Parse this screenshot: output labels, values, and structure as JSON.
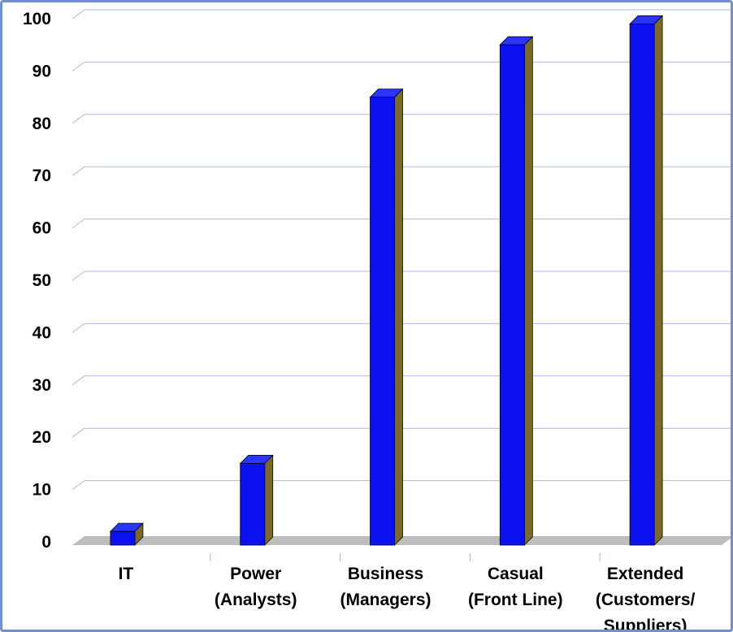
{
  "chart_data": {
    "type": "bar",
    "categories": [
      [
        "IT"
      ],
      [
        "Power",
        "(Analysts)"
      ],
      [
        "Business",
        "(Managers)"
      ],
      [
        "Casual",
        "(Front Line)"
      ],
      [
        "Extended",
        "(Customers/",
        "Suppliers)"
      ]
    ],
    "values": [
      2,
      15,
      85,
      95,
      99
    ],
    "ylim": [
      0,
      100
    ],
    "yticks": [
      0,
      10,
      20,
      30,
      40,
      50,
      60,
      70,
      80,
      90,
      100
    ],
    "title": "",
    "xlabel": "",
    "ylabel": "",
    "grid": true,
    "legend": "none",
    "style": "3d"
  },
  "colors": {
    "bar_front": "#0a10f0",
    "bar_side": "#7a6a2a",
    "bar_top": "#2a36ff",
    "floor": "#bdbdbd",
    "gridline": "#aeb8e6",
    "frame": "#6f8fd0"
  }
}
